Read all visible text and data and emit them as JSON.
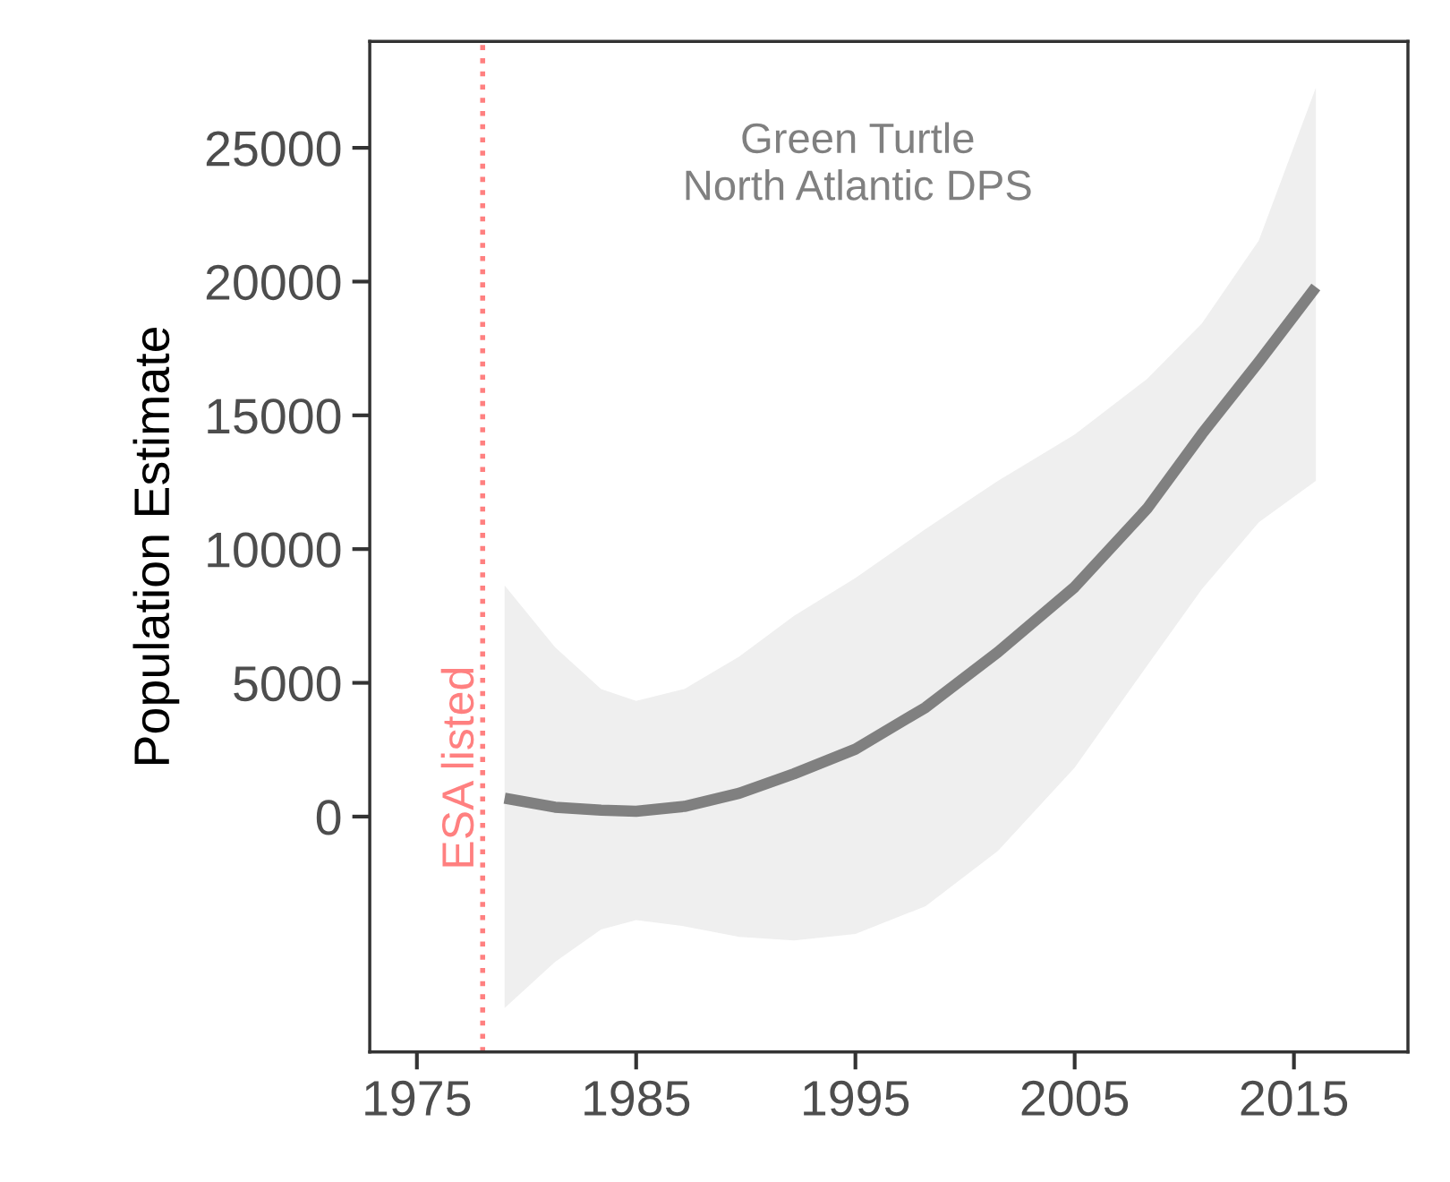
{
  "chart_data": {
    "type": "line",
    "ylabel": "Population Estimate",
    "annotations": [
      "Green Turtle\nNorth Atlantic DPS"
    ],
    "x": [
      1979,
      1981.3,
      1983.4,
      1985,
      1987.2,
      1989.7,
      1992.2,
      1995,
      1998.2,
      2001.5,
      2005,
      2008.3,
      2010.8,
      2013.4,
      2016
    ],
    "series": [
      {
        "color": "#808080",
        "values": [
          690,
          350,
          240,
          200,
          380,
          870,
          1600,
          2520,
          4080,
          6150,
          8580,
          11510,
          14300,
          17000,
          19800
        ],
        "lower": [
          -7160,
          -5430,
          -4220,
          -3870,
          -4100,
          -4500,
          -4630,
          -4390,
          -3350,
          -1280,
          1830,
          5640,
          8500,
          11000,
          12550
        ],
        "upper": [
          8640,
          6330,
          4770,
          4320,
          4770,
          5980,
          7500,
          8920,
          10750,
          12550,
          14280,
          16360,
          18430,
          21540,
          27250
        ]
      }
    ],
    "ref_lines": [
      {
        "axis": "x",
        "value": 1978,
        "label": "ESA listed",
        "color": "#ff8080",
        "line_style": "dotted"
      }
    ],
    "xlim": [
      1972.85,
      2020.2
    ],
    "ylim": [
      -8800,
      28980
    ],
    "xticks": [
      1975,
      1985,
      1995,
      2005,
      2015
    ],
    "yticks": [
      0,
      5000,
      10000,
      15000,
      20000,
      25000
    ],
    "grid": false,
    "legend": false,
    "marker": "none",
    "line_style": "solid"
  }
}
